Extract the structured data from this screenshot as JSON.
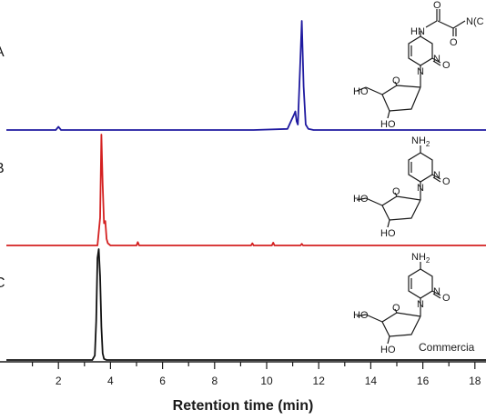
{
  "chart_data": {
    "type": "line",
    "title": "",
    "xlabel": "Retention time (min)",
    "ylabel": "",
    "xlim": [
      0,
      19.5
    ],
    "xticks": [
      "2",
      "4",
      "6",
      "8",
      "10",
      "12",
      "14",
      "16",
      "18"
    ],
    "grid": false,
    "series": [
      {
        "panel": "A",
        "color": "#1f1aa0",
        "x": [
          0,
          1.9,
          2.0,
          2.1,
          9.5,
          10.8,
          10.95,
          11.05,
          11.1,
          11.15,
          11.2,
          11.28,
          11.35,
          11.42,
          11.5,
          11.6,
          11.8,
          19.5
        ],
        "y": [
          0,
          0,
          0.03,
          0,
          0,
          0.01,
          0.09,
          0.14,
          0.17,
          0.08,
          0.05,
          0.55,
          1.0,
          0.4,
          0.05,
          0.01,
          0,
          0
        ]
      },
      {
        "panel": "B",
        "color": "#d42020",
        "x": [
          0,
          3.5,
          3.6,
          3.65,
          3.7,
          3.75,
          3.8,
          3.85,
          3.9,
          4.0,
          5.0,
          5.05,
          5.1,
          6.0,
          9.4,
          9.45,
          9.5,
          10.2,
          10.25,
          10.3,
          11.3,
          11.35,
          11.4,
          19.5
        ],
        "y": [
          0,
          0,
          0.25,
          1.0,
          0.55,
          0.2,
          0.22,
          0.06,
          0.02,
          0,
          0,
          0.03,
          0,
          0,
          0,
          0.02,
          0,
          0,
          0.025,
          0,
          0,
          0.015,
          0,
          0
        ]
      },
      {
        "panel": "C",
        "color": "#111111",
        "x": [
          0,
          3.3,
          3.4,
          3.45,
          3.5,
          3.55,
          3.6,
          3.65,
          3.7,
          3.75,
          3.85,
          19.5
        ],
        "y": [
          0,
          0,
          0.04,
          0.35,
          0.92,
          1.0,
          0.75,
          0.3,
          0.06,
          0.01,
          0,
          0
        ]
      }
    ]
  },
  "panels": {
    "a": {
      "letter": "A",
      "substituent": "N(C"
    },
    "b": {
      "letter": "B"
    },
    "c": {
      "letter": "C",
      "note": "Commercia"
    }
  },
  "structure": {
    "ho": "HO",
    "nh": "HN",
    "nh2": "NH",
    "n": "N",
    "o": "O",
    "sub2": "2"
  }
}
